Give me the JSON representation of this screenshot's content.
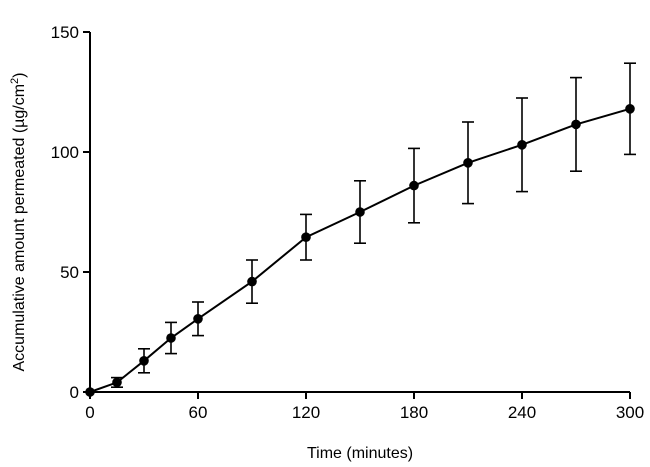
{
  "chart_data": {
    "type": "line",
    "title": "",
    "xlabel": "Time (minutes)",
    "ylabel_main": "Accumulative amount permeated (µg/cm",
    "ylabel_sup": "2",
    "ylabel_close": ")",
    "xlim": [
      0,
      300
    ],
    "ylim": [
      0,
      150
    ],
    "x_ticks": [
      0,
      60,
      120,
      180,
      240,
      300
    ],
    "y_ticks": [
      0,
      50,
      100,
      150
    ],
    "grid": false,
    "series": [
      {
        "x": [
          0,
          15,
          30,
          45,
          60,
          90,
          120,
          150,
          180,
          210,
          240,
          270,
          300
        ],
        "y": [
          0,
          4,
          13,
          22.5,
          30.5,
          46,
          64.5,
          75,
          86,
          95.5,
          103,
          111.5,
          118
        ],
        "error": [
          0,
          2,
          5,
          6.5,
          7,
          9,
          9.5,
          13,
          15.5,
          17,
          19.5,
          19.5,
          19
        ],
        "color": "#000000"
      }
    ]
  }
}
